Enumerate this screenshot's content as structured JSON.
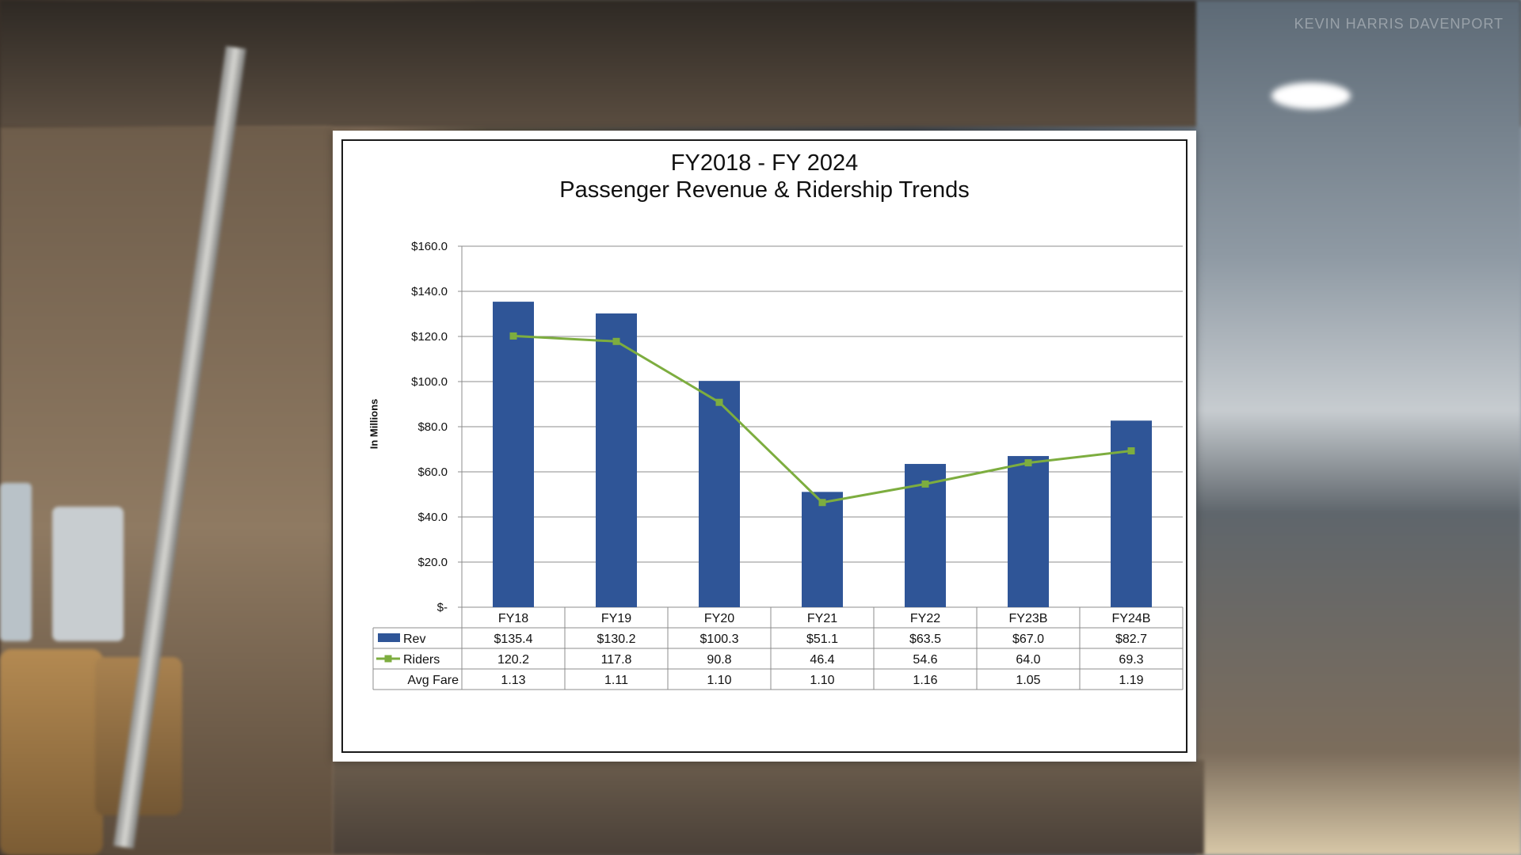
{
  "watermark": "KEVIN HARRIS DAVENPORT",
  "chart_data": {
    "type": "bar",
    "title": "FY2018 - FY 2024",
    "subtitle": "Passenger Revenue & Ridership Trends",
    "ylabel": "In Millions",
    "ylim": [
      0,
      160
    ],
    "y_ticks": [
      "$-",
      "$20.0",
      "$40.0",
      "$60.0",
      "$80.0",
      "$100.0",
      "$120.0",
      "$140.0",
      "$160.0"
    ],
    "grid": true,
    "categories": [
      "FY18",
      "FY19",
      "FY20",
      "FY21",
      "FY22",
      "FY23B",
      "FY24B"
    ],
    "series": [
      {
        "name": "Rev",
        "kind": "bar",
        "color": "#2f5597",
        "values": [
          135.4,
          130.2,
          100.3,
          51.1,
          63.5,
          67.0,
          82.7
        ],
        "labels": [
          "$135.4",
          "$130.2",
          "$100.3",
          "$51.1",
          "$63.5",
          "$67.0",
          "$82.7"
        ]
      },
      {
        "name": "Riders",
        "kind": "line",
        "color": "#7dad3f",
        "marker": "square",
        "values": [
          120.2,
          117.8,
          90.8,
          46.4,
          54.6,
          64.0,
          69.3
        ],
        "labels": [
          "120.2",
          "117.8",
          "90.8",
          "46.4",
          "54.6",
          "64.0",
          "69.3"
        ]
      }
    ],
    "table_rows": [
      {
        "name": "Avg Fare",
        "values": [
          "1.13",
          "1.11",
          "1.10",
          "1.10",
          "1.16",
          "1.05",
          "1.19"
        ]
      }
    ]
  }
}
